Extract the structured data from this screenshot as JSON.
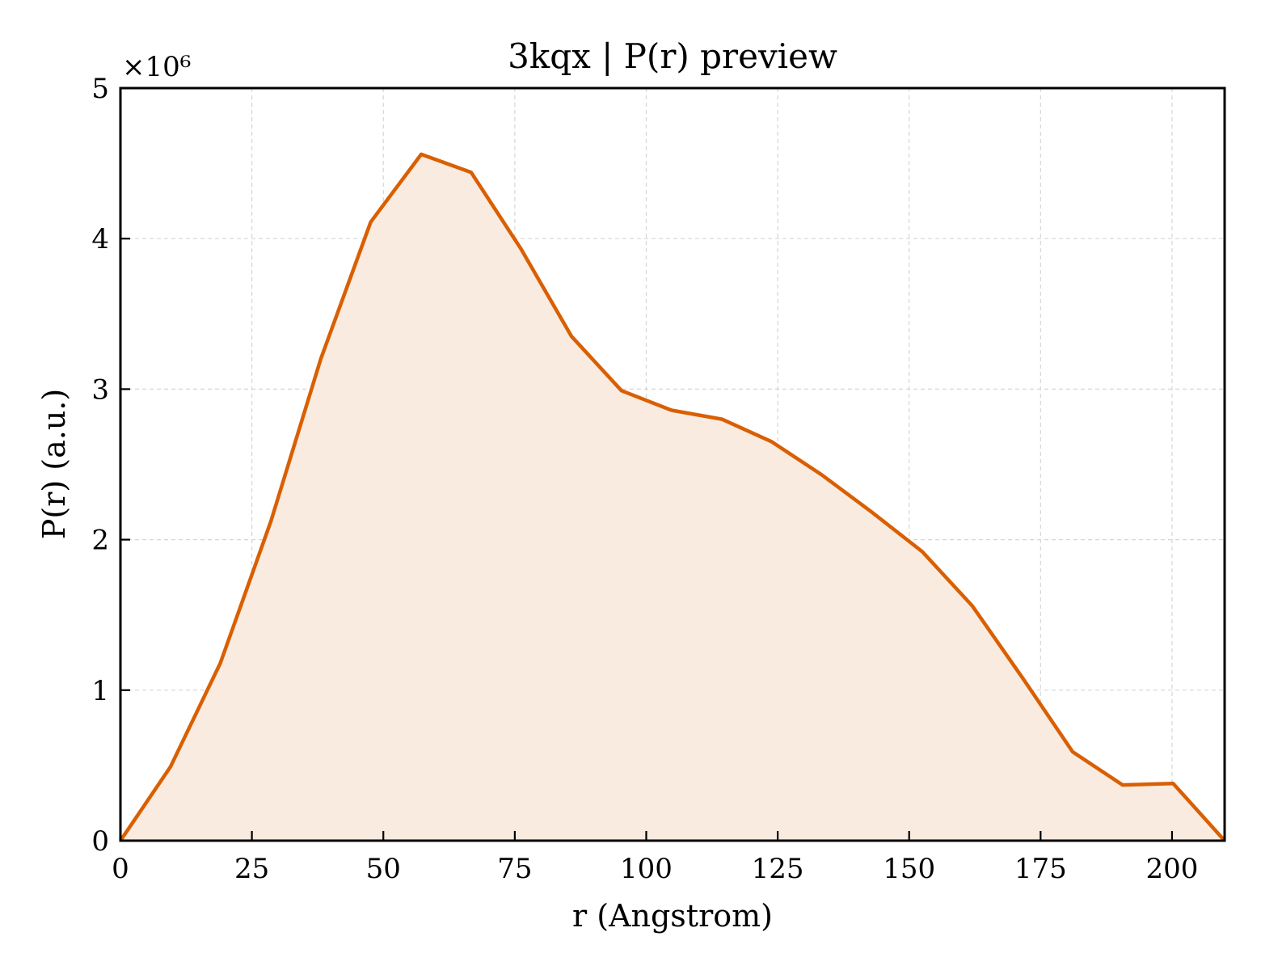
{
  "chart_data": {
    "type": "area",
    "title": "3kqx | P(r) preview",
    "xlabel": "r (Angstrom)",
    "ylabel": "P(r) (a.u.)",
    "y_offset_label": "×10⁶",
    "xlim": [
      0,
      210
    ],
    "ylim": [
      0,
      5
    ],
    "x_ticks": [
      0,
      25,
      50,
      75,
      100,
      125,
      150,
      175,
      200
    ],
    "y_ticks": [
      0,
      1,
      2,
      3,
      4,
      5
    ],
    "grid": true,
    "y_scale_note": "values in units of 10^6",
    "line_color": "#d95f02",
    "fill_color": "#f9ebe0",
    "series": [
      {
        "x": [
          0,
          9.5,
          19,
          28.6,
          38.1,
          47.6,
          57.2,
          66.7,
          76.2,
          85.8,
          95.3,
          104.8,
          114.4,
          123.9,
          133.4,
          143,
          152.5,
          162,
          171.6,
          181.1,
          190.6,
          200.2,
          210
        ],
        "y": [
          0,
          0.49,
          1.18,
          2.12,
          3.2,
          4.11,
          4.56,
          4.44,
          3.93,
          3.35,
          2.99,
          2.86,
          2.8,
          2.65,
          2.43,
          2.18,
          1.92,
          1.56,
          1.08,
          0.59,
          0.37,
          0.38,
          0
        ]
      }
    ]
  }
}
